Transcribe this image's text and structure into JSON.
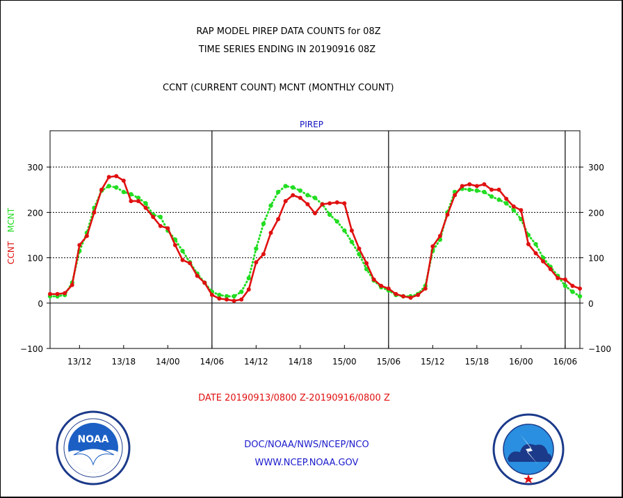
{
  "header": {
    "title_line1": "RAP MODEL PIREP DATA COUNTS for 08Z",
    "title_line2": "TIME SERIES ENDING IN 20190916 08Z",
    "subtitle": "CCNT (CURRENT COUNT) MCNT (MONTHLY COUNT)",
    "panel_label": "PIREP"
  },
  "footer": {
    "date_range": "DATE 20190913/0800 Z-20190916/0800 Z",
    "credit_line1": "DOC/NOAA/NWS/NCEP/NCO",
    "credit_line2": "WWW.NCEP.NOAA.GOV"
  },
  "logos": {
    "left": {
      "icon": "noaa-logo-icon",
      "text": "NOAA"
    },
    "right": {
      "icon": "national-weather-service-logo-icon"
    }
  },
  "colors": {
    "ccnt": "#e01010",
    "mcnt": "#22dd22",
    "panel": "#1010c0",
    "credits": "#1a1acc"
  },
  "chart_data": {
    "type": "line",
    "x_start_hour": 0,
    "x_end_hour": 72,
    "xlim": [
      0,
      72
    ],
    "ylim": [
      -100,
      380
    ],
    "grid": true,
    "y_ticks": [
      -100,
      0,
      100,
      200,
      300
    ],
    "y_tick_labels": [
      "−100",
      "0",
      "100",
      "200",
      "300"
    ],
    "x_tick_hours": [
      4,
      10,
      16,
      22,
      28,
      34,
      40,
      46,
      52,
      58,
      64,
      70
    ],
    "x_tick_labels": [
      "13/12",
      "13/18",
      "14/00",
      "14/06",
      "14/12",
      "14/18",
      "15/00",
      "15/06",
      "15/12",
      "15/18",
      "16/00",
      "16/06"
    ],
    "day_divider_hours": [
      22,
      46,
      70
    ],
    "left_axis_labels": [
      "CCNT",
      "MCNT"
    ],
    "series": [
      {
        "name": "CCNT",
        "color": "#e01010",
        "values": [
          20,
          20,
          22,
          40,
          128,
          148,
          200,
          250,
          278,
          280,
          270,
          225,
          225,
          210,
          190,
          170,
          165,
          128,
          95,
          88,
          60,
          45,
          18,
          10,
          8,
          5,
          8,
          30,
          90,
          108,
          155,
          185,
          225,
          238,
          232,
          218,
          198,
          218,
          220,
          222,
          220,
          160,
          120,
          88,
          52,
          38,
          32,
          20,
          15,
          12,
          18,
          32,
          125,
          148,
          195,
          238,
          258,
          262,
          258,
          262,
          250,
          250,
          230,
          213,
          205,
          130,
          110,
          92,
          75,
          55,
          52,
          38,
          32
        ]
      },
      {
        "name": "MCNT",
        "color": "#22dd22",
        "values": [
          15,
          15,
          18,
          45,
          115,
          155,
          210,
          248,
          258,
          255,
          245,
          240,
          232,
          220,
          195,
          190,
          160,
          140,
          115,
          90,
          65,
          45,
          25,
          18,
          15,
          15,
          25,
          55,
          120,
          175,
          215,
          245,
          258,
          255,
          248,
          238,
          232,
          218,
          195,
          180,
          160,
          135,
          108,
          75,
          50,
          35,
          28,
          18,
          15,
          15,
          20,
          38,
          115,
          140,
          200,
          245,
          252,
          250,
          248,
          245,
          235,
          228,
          220,
          205,
          185,
          150,
          130,
          100,
          80,
          60,
          38,
          25,
          15
        ]
      }
    ]
  }
}
